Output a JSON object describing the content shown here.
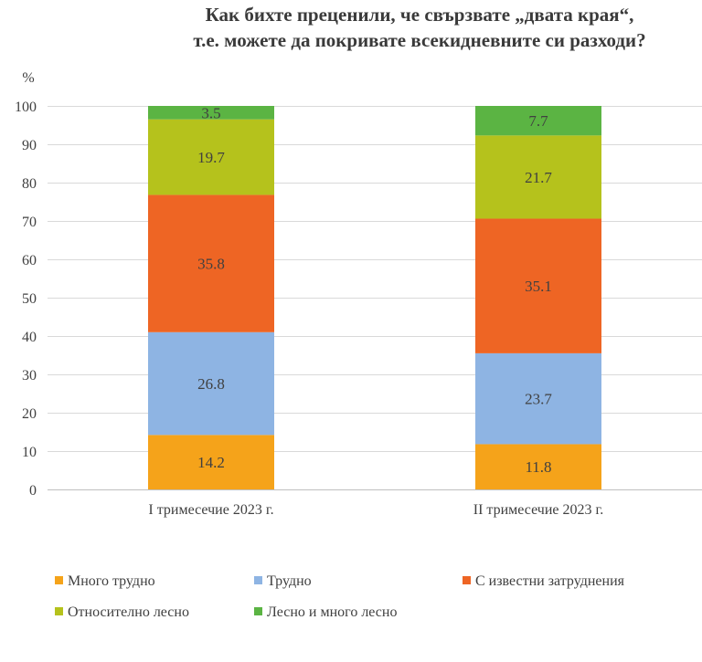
{
  "title_line1": "Как бихте преценили, че свързвате „двата края“,",
  "title_line2": "т.е. можете да покривате всекидневните си разходи?",
  "chart_data": {
    "type": "bar",
    "stacked": true,
    "title": "Как бихте преценили, че свързвате „двата края“, т.е. можете да покривате всекидневните си разходи?",
    "ylabel": "%",
    "ylim": [
      0,
      100
    ],
    "yticks": [
      "0",
      "10",
      "20",
      "30",
      "40",
      "50",
      "60",
      "70",
      "80",
      "90",
      "100"
    ],
    "categories": [
      "I тримесечие 2023 г.",
      "II тримесечие 2023 г."
    ],
    "series": [
      {
        "name": "Много трудно",
        "color": "#F5A31A",
        "values": [
          14.2,
          11.8
        ],
        "labels": [
          "14.2",
          "11.8"
        ]
      },
      {
        "name": "Трудно",
        "color": "#8EB4E3",
        "values": [
          26.8,
          23.7
        ],
        "labels": [
          "26.8",
          "23.7"
        ]
      },
      {
        "name": "С известни затруднения",
        "color": "#EE6524",
        "values": [
          35.8,
          35.1
        ],
        "labels": [
          "35.8",
          "35.1"
        ]
      },
      {
        "name": "Относително лесно",
        "color": "#B5C21C",
        "values": [
          19.7,
          21.7
        ],
        "labels": [
          "19.7",
          "21.7"
        ]
      },
      {
        "name": "Лесно и много лесно",
        "color": "#5BB443",
        "values": [
          3.5,
          7.7
        ],
        "labels": [
          "3.5",
          "7.7"
        ]
      }
    ],
    "legend_position": "bottom"
  }
}
